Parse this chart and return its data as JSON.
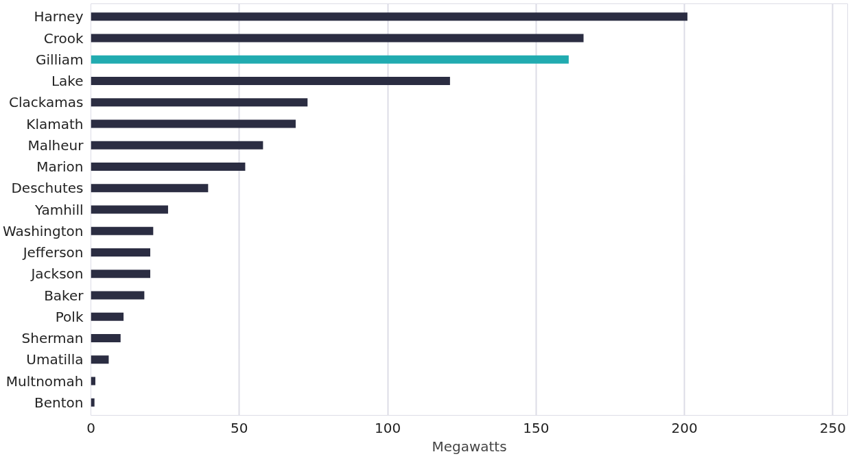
{
  "chart_data": {
    "type": "bar",
    "orientation": "horizontal",
    "xlabel": "Megawatts",
    "categories": [
      "Harney",
      "Crook",
      "Gilliam",
      "Lake",
      "Clackamas",
      "Klamath",
      "Malheur",
      "Marion",
      "Deschutes",
      "Yamhill",
      "Washington",
      "Jefferson",
      "Jackson",
      "Baker",
      "Polk",
      "Sherman",
      "Umatilla",
      "Multnomah",
      "Benton"
    ],
    "values": [
      201,
      166,
      161,
      121,
      73,
      69,
      58,
      52,
      39.5,
      26,
      21,
      20,
      20,
      18,
      11,
      10,
      6,
      1.5,
      1.2
    ],
    "colors": [
      "#2b2d42",
      "#2b2d42",
      "#21abb0",
      "#2b2d42",
      "#2b2d42",
      "#2b2d42",
      "#2b2d42",
      "#2b2d42",
      "#2b2d42",
      "#2b2d42",
      "#2b2d42",
      "#2b2d42",
      "#2b2d42",
      "#2b2d42",
      "#2b2d42",
      "#2b2d42",
      "#2b2d42",
      "#2b2d42",
      "#2b2d42"
    ],
    "xlim": [
      0,
      255
    ],
    "xticks": [
      0,
      50,
      100,
      150,
      200,
      250
    ],
    "grid": "x"
  }
}
